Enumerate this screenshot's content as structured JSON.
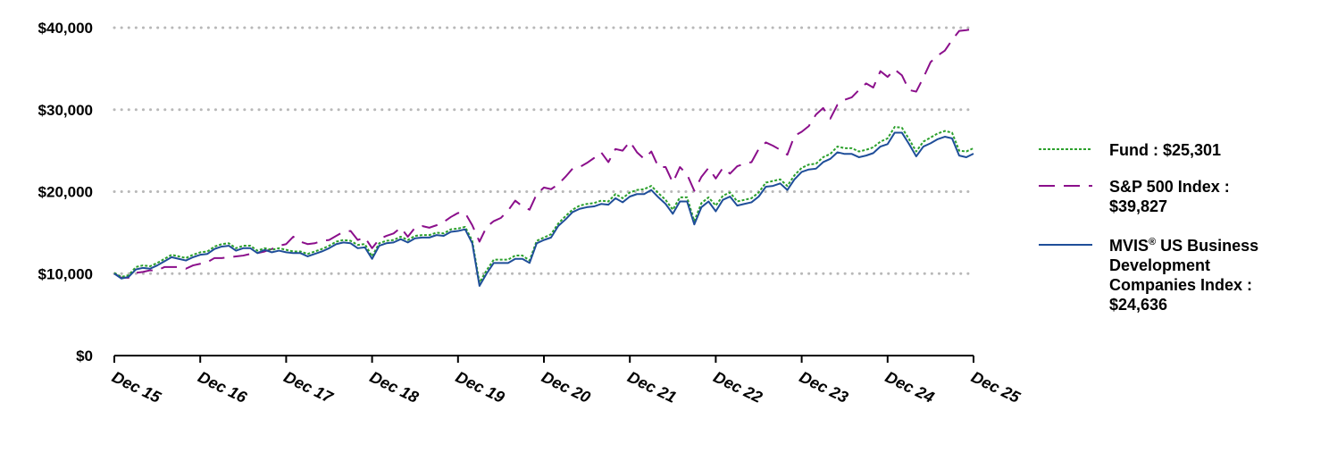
{
  "chart_data": {
    "type": "line",
    "title": "",
    "xlabel": "",
    "ylabel": "",
    "ylim": [
      0,
      40000
    ],
    "yticks": [
      0,
      10000,
      20000,
      30000,
      40000
    ],
    "ytick_labels": [
      "$0",
      "$10,000",
      "$20,000",
      "$30,000",
      "$40,000"
    ],
    "xlim": [
      2015.917,
      2025.917
    ],
    "xticks": [
      2015.917,
      2016.917,
      2017.917,
      2018.917,
      2019.917,
      2020.917,
      2021.917,
      2022.917,
      2023.917,
      2024.917,
      2025.917
    ],
    "xtick_labels": [
      "Dec 15",
      "Dec 16",
      "Dec 17",
      "Dec 18",
      "Dec 19",
      "Dec 20",
      "Dec 21",
      "Dec 22",
      "Dec 23",
      "Dec 24",
      "Dec 25"
    ],
    "grid": "horizontal dotted",
    "legend_position": "right",
    "series": [
      {
        "key": "fund",
        "legend_label": "Fund : $25,301",
        "color": "#2ca02c",
        "style": "dotted",
        "x": [
          2015.917,
          2016.0,
          2016.083,
          2016.167,
          2016.25,
          2016.333,
          2016.417,
          2016.5,
          2016.583,
          2016.667,
          2016.75,
          2016.833,
          2016.917,
          2017.0,
          2017.083,
          2017.167,
          2017.25,
          2017.333,
          2017.417,
          2017.5,
          2017.583,
          2017.667,
          2017.75,
          2017.833,
          2017.917,
          2018.0,
          2018.083,
          2018.167,
          2018.25,
          2018.333,
          2018.417,
          2018.5,
          2018.583,
          2018.667,
          2018.75,
          2018.833,
          2018.917,
          2019.0,
          2019.083,
          2019.167,
          2019.25,
          2019.333,
          2019.417,
          2019.5,
          2019.583,
          2019.667,
          2019.75,
          2019.833,
          2019.917,
          2020.0,
          2020.083,
          2020.167,
          2020.25,
          2020.333,
          2020.417,
          2020.5,
          2020.583,
          2020.667,
          2020.75,
          2020.833,
          2020.917,
          2021.0,
          2021.083,
          2021.167,
          2021.25,
          2021.333,
          2021.417,
          2021.5,
          2021.583,
          2021.667,
          2021.75,
          2021.833,
          2021.917,
          2022.0,
          2022.083,
          2022.167,
          2022.25,
          2022.333,
          2022.417,
          2022.5,
          2022.583,
          2022.667,
          2022.75,
          2022.833,
          2022.917,
          2023.0,
          2023.083,
          2023.167,
          2023.25,
          2023.333,
          2023.417,
          2023.5,
          2023.583,
          2023.667,
          2023.75,
          2023.833,
          2023.917,
          2024.0,
          2024.083,
          2024.167,
          2024.25,
          2024.333,
          2024.417,
          2024.5,
          2024.583,
          2024.667,
          2024.75,
          2024.833,
          2024.917,
          2025.0,
          2025.083,
          2025.167,
          2025.25,
          2025.333,
          2025.417,
          2025.5,
          2025.583,
          2025.667,
          2025.75,
          2025.833,
          2025.917
        ],
        "values": [
          10100,
          9600,
          9800,
          10800,
          11000,
          10900,
          11300,
          11800,
          12300,
          12100,
          11900,
          12300,
          12600,
          12700,
          13300,
          13600,
          13700,
          13100,
          13400,
          13400,
          12800,
          13100,
          12900,
          13100,
          12900,
          12700,
          12700,
          12400,
          12700,
          13000,
          13400,
          13900,
          14100,
          14000,
          13500,
          13600,
          12100,
          13700,
          14000,
          14100,
          14500,
          14100,
          14600,
          14700,
          14700,
          15000,
          14900,
          15400,
          15500,
          15700,
          14000,
          8900,
          10400,
          11700,
          11700,
          11700,
          12200,
          12200,
          11600,
          14000,
          14400,
          14800,
          16100,
          17000,
          17800,
          18300,
          18500,
          18600,
          18900,
          18800,
          19700,
          19200,
          19900,
          20200,
          20300,
          20700,
          19800,
          19000,
          17800,
          19300,
          19300,
          16400,
          18600,
          19300,
          18300,
          19500,
          19900,
          18800,
          19000,
          19200,
          19900,
          21100,
          21300,
          21500,
          20700,
          22000,
          22900,
          23300,
          23400,
          24200,
          24600,
          25500,
          25300,
          25300,
          24900,
          25100,
          25400,
          26100,
          26500,
          27900,
          27800,
          26400,
          24900,
          26100,
          26600,
          27100,
          27400,
          27200,
          25000,
          24900,
          25301
        ]
      },
      {
        "key": "sp500",
        "legend_label": "S&P 500 Index : $39,827",
        "legend_lines": [
          "S&P 500 Index :",
          "$39,827"
        ],
        "color": "#8b0f8b",
        "style": "dashed",
        "x": [
          2015.917,
          2016.0,
          2016.083,
          2016.167,
          2016.25,
          2016.333,
          2016.417,
          2016.5,
          2016.583,
          2016.667,
          2016.75,
          2016.833,
          2016.917,
          2017.0,
          2017.083,
          2017.167,
          2017.25,
          2017.333,
          2017.417,
          2017.5,
          2017.583,
          2017.667,
          2017.75,
          2017.833,
          2017.917,
          2018.0,
          2018.083,
          2018.167,
          2018.25,
          2018.333,
          2018.417,
          2018.5,
          2018.583,
          2018.667,
          2018.75,
          2018.833,
          2018.917,
          2019.0,
          2019.083,
          2019.167,
          2019.25,
          2019.333,
          2019.417,
          2019.5,
          2019.583,
          2019.667,
          2019.75,
          2019.833,
          2019.917,
          2020.0,
          2020.083,
          2020.167,
          2020.25,
          2020.333,
          2020.417,
          2020.5,
          2020.583,
          2020.667,
          2020.75,
          2020.833,
          2020.917,
          2021.0,
          2021.083,
          2021.167,
          2021.25,
          2021.333,
          2021.417,
          2021.5,
          2021.583,
          2021.667,
          2021.75,
          2021.833,
          2021.917,
          2022.0,
          2022.083,
          2022.167,
          2022.25,
          2022.333,
          2022.417,
          2022.5,
          2022.583,
          2022.667,
          2022.75,
          2022.833,
          2022.917,
          2023.0,
          2023.083,
          2023.167,
          2023.25,
          2023.333,
          2023.417,
          2023.5,
          2023.583,
          2023.667,
          2023.75,
          2023.833,
          2023.917,
          2024.0,
          2024.083,
          2024.167,
          2024.25,
          2024.333,
          2024.417,
          2024.5,
          2024.583,
          2024.667,
          2024.75,
          2024.833,
          2024.917,
          2025.0,
          2025.083,
          2025.167,
          2025.25,
          2025.333,
          2025.417,
          2025.5,
          2025.583,
          2025.667,
          2025.75,
          2025.833,
          2025.917
        ],
        "values": [
          10000,
          9500,
          9500,
          10100,
          10200,
          10400,
          10400,
          10800,
          10800,
          10800,
          10600,
          11000,
          11200,
          11400,
          11900,
          11900,
          12000,
          12100,
          12200,
          12400,
          12500,
          12700,
          13000,
          13400,
          13600,
          14500,
          13900,
          13600,
          13700,
          14000,
          14100,
          14600,
          15100,
          15200,
          14100,
          14400,
          13100,
          14200,
          14600,
          14900,
          15600,
          14500,
          15600,
          15800,
          15600,
          15900,
          16300,
          16900,
          17400,
          17400,
          15900,
          13900,
          15700,
          16400,
          16800,
          17700,
          18900,
          18200,
          17800,
          19700,
          20500,
          20300,
          20900,
          21800,
          22800,
          23000,
          23500,
          24100,
          24800,
          23600,
          25200,
          25000,
          26100,
          24800,
          24000,
          24900,
          23000,
          23000,
          21100,
          23000,
          22100,
          20100,
          21800,
          22900,
          21600,
          22900,
          22200,
          23100,
          23400,
          23600,
          25200,
          26000,
          25600,
          25100,
          24500,
          26800,
          27300,
          28000,
          29400,
          30200,
          28900,
          30600,
          31200,
          31500,
          32400,
          33200,
          32700,
          34700,
          34000,
          34900,
          34200,
          32400,
          32200,
          33900,
          35800,
          36600,
          37200,
          38500,
          39600,
          39700,
          39827
        ]
      },
      {
        "key": "mvis",
        "legend_label": "MVIS® US Business Development Companies Index : $24,636",
        "legend_lines": [
          "MVIS® US Business",
          "Development",
          "Companies Index :",
          "$24,636"
        ],
        "color": "#1f4e99",
        "style": "solid",
        "x": [
          2015.917,
          2016.0,
          2016.083,
          2016.167,
          2016.25,
          2016.333,
          2016.417,
          2016.5,
          2016.583,
          2016.667,
          2016.75,
          2016.833,
          2016.917,
          2017.0,
          2017.083,
          2017.167,
          2017.25,
          2017.333,
          2017.417,
          2017.5,
          2017.583,
          2017.667,
          2017.75,
          2017.833,
          2017.917,
          2018.0,
          2018.083,
          2018.167,
          2018.25,
          2018.333,
          2018.417,
          2018.5,
          2018.583,
          2018.667,
          2018.75,
          2018.833,
          2018.917,
          2019.0,
          2019.083,
          2019.167,
          2019.25,
          2019.333,
          2019.417,
          2019.5,
          2019.583,
          2019.667,
          2019.75,
          2019.833,
          2019.917,
          2020.0,
          2020.083,
          2020.167,
          2020.25,
          2020.333,
          2020.417,
          2020.5,
          2020.583,
          2020.667,
          2020.75,
          2020.833,
          2020.917,
          2021.0,
          2021.083,
          2021.167,
          2021.25,
          2021.333,
          2021.417,
          2021.5,
          2021.583,
          2021.667,
          2021.75,
          2021.833,
          2021.917,
          2022.0,
          2022.083,
          2022.167,
          2022.25,
          2022.333,
          2022.417,
          2022.5,
          2022.583,
          2022.667,
          2022.75,
          2022.833,
          2022.917,
          2023.0,
          2023.083,
          2023.167,
          2023.25,
          2023.333,
          2023.417,
          2023.5,
          2023.583,
          2023.667,
          2023.75,
          2023.833,
          2023.917,
          2024.0,
          2024.083,
          2024.167,
          2024.25,
          2024.333,
          2024.417,
          2024.5,
          2024.583,
          2024.667,
          2024.75,
          2024.833,
          2024.917,
          2025.0,
          2025.083,
          2025.167,
          2025.25,
          2025.333,
          2025.417,
          2025.5,
          2025.583,
          2025.667,
          2025.75,
          2025.833,
          2025.917
        ],
        "values": [
          10000,
          9400,
          9600,
          10500,
          10700,
          10600,
          11000,
          11500,
          12000,
          11800,
          11600,
          12000,
          12300,
          12400,
          13000,
          13300,
          13400,
          12800,
          13100,
          13100,
          12500,
          12900,
          12600,
          12800,
          12600,
          12500,
          12500,
          12100,
          12400,
          12700,
          13100,
          13600,
          13800,
          13700,
          13100,
          13200,
          11800,
          13400,
          13700,
          13800,
          14200,
          13800,
          14300,
          14400,
          14400,
          14700,
          14600,
          15100,
          15200,
          15400,
          13700,
          8500,
          10000,
          11300,
          11300,
          11300,
          11800,
          11800,
          11300,
          13700,
          14100,
          14400,
          15800,
          16600,
          17500,
          17900,
          18100,
          18200,
          18500,
          18400,
          19200,
          18700,
          19400,
          19700,
          19700,
          20200,
          19300,
          18500,
          17300,
          18800,
          18800,
          16000,
          18100,
          18800,
          17600,
          19000,
          19400,
          18300,
          18500,
          18700,
          19400,
          20600,
          20700,
          21000,
          20200,
          21500,
          22400,
          22700,
          22800,
          23600,
          24000,
          24800,
          24600,
          24600,
          24200,
          24400,
          24700,
          25500,
          25800,
          27200,
          27200,
          25800,
          24300,
          25500,
          25900,
          26400,
          26700,
          26500,
          24400,
          24200,
          24636
        ]
      }
    ]
  }
}
